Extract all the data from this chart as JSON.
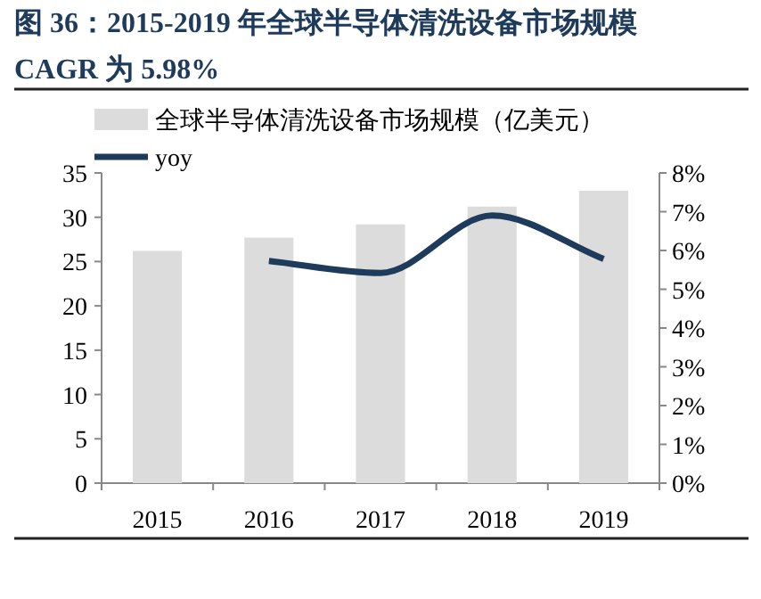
{
  "chart_data": {
    "type": "bar",
    "title": "图 36：2015-2019 年全球半导体清洗设备市场规模",
    "subtitle": "CAGR 为 5.98%",
    "categories": [
      "2015",
      "2016",
      "2017",
      "2018",
      "2019"
    ],
    "series": [
      {
        "name": "全球半导体清洗设备市场规模（亿美元）",
        "color": "#dcdcdc",
        "values": [
          26.2,
          27.7,
          29.2,
          31.2,
          33.0
        ]
      },
      {
        "name": "yoy",
        "type": "line",
        "axis": "y2",
        "color": "#1f3b5c",
        "values": [
          null,
          5.73,
          5.42,
          6.9,
          5.78
        ]
      }
    ],
    "ylim": [
      0,
      35
    ],
    "yticks": [
      0,
      5,
      10,
      15,
      20,
      25,
      30,
      35
    ],
    "y2lim": [
      0,
      8
    ],
    "y2ticks": [
      {
        "value": 0,
        "label": "0%"
      },
      {
        "value": 1,
        "label": "1%"
      },
      {
        "value": 2,
        "label": "2%"
      },
      {
        "value": 3,
        "label": "3%"
      },
      {
        "value": 4,
        "label": "4%"
      },
      {
        "value": 5,
        "label": "5%"
      },
      {
        "value": 6,
        "label": "6%"
      },
      {
        "value": 7,
        "label": "7%"
      },
      {
        "value": 8,
        "label": "8%"
      }
    ],
    "legend": "top",
    "grid": false
  }
}
